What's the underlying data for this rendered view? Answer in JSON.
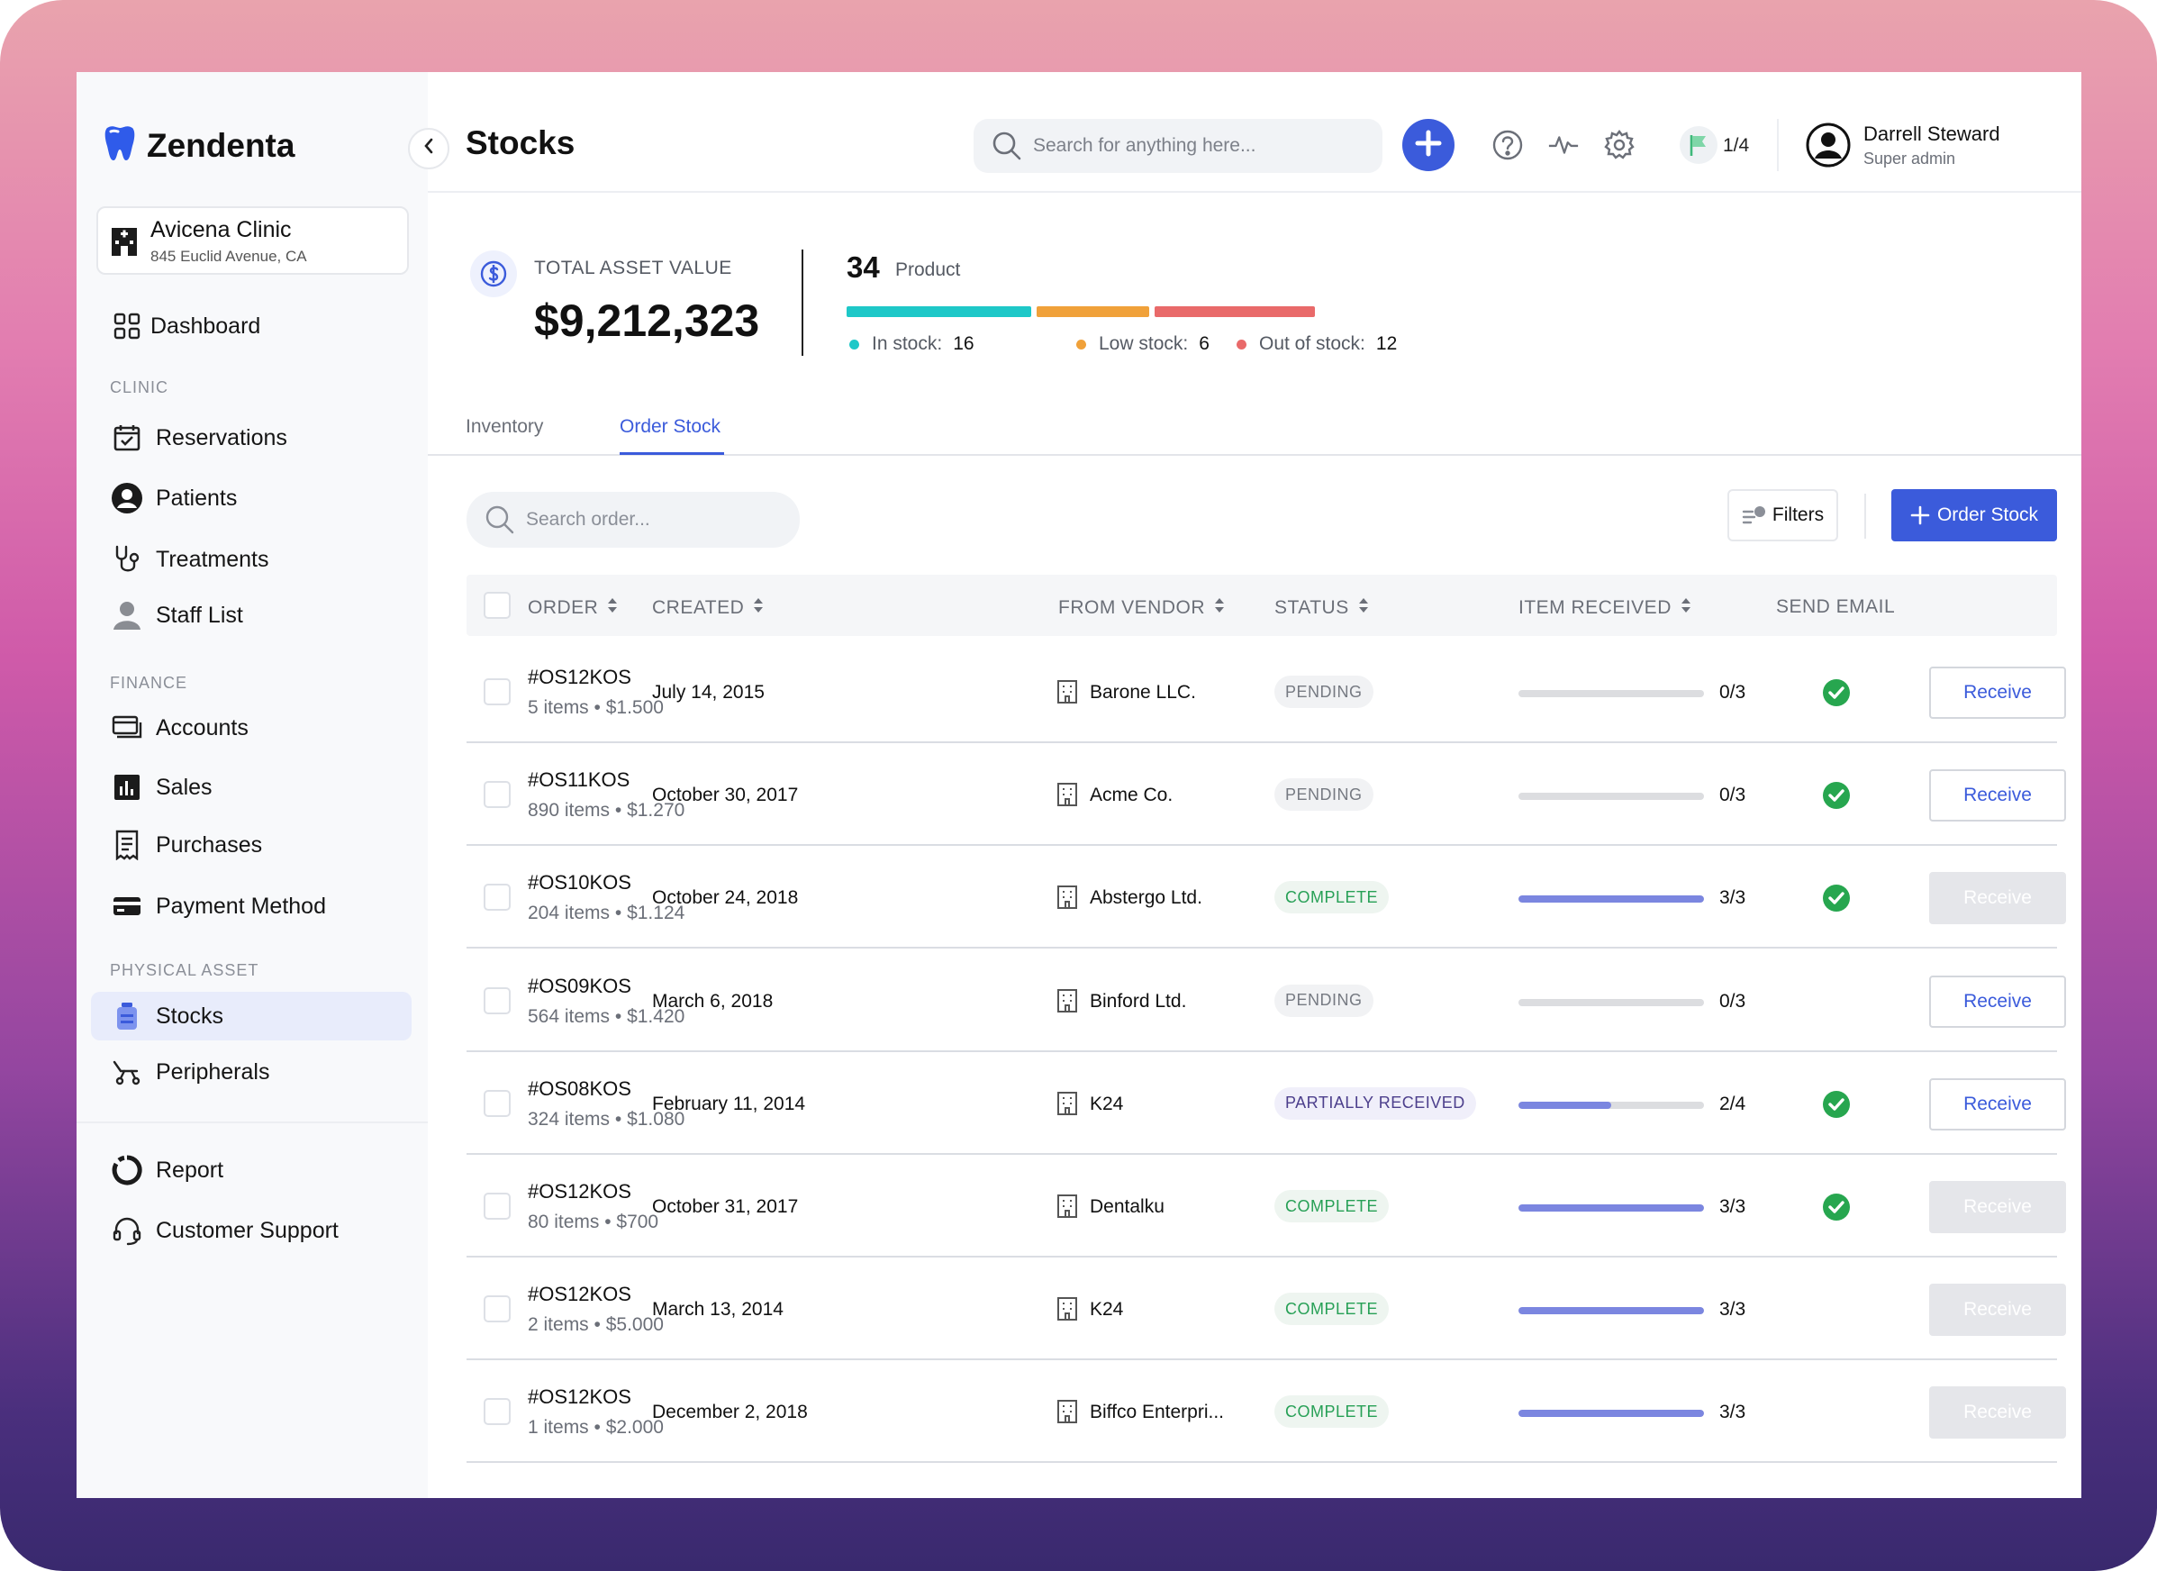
{
  "app": {
    "logo_text": "Zendenta",
    "clinic": {
      "name": "Avicena Clinic",
      "address": "845 Euclid Avenue, CA"
    }
  },
  "sidebar": {
    "dashboard": "Dashboard",
    "sections": {
      "clinic": "CLINIC",
      "finance": "FINANCE",
      "physical_asset": "PHYSICAL ASSET"
    },
    "clinic_items": [
      "Reservations",
      "Patients",
      "Treatments",
      "Staff List"
    ],
    "finance_items": [
      "Accounts",
      "Sales",
      "Purchases",
      "Payment Method"
    ],
    "asset_items": [
      "Stocks",
      "Peripherals"
    ],
    "bottom_items": [
      "Report",
      "Customer Support"
    ],
    "active_item": "Stocks"
  },
  "header": {
    "title": "Stocks",
    "search_placeholder": "Search for anything here...",
    "flag_count": "1/4",
    "user": {
      "name": "Darrell Steward",
      "role": "Super admin"
    }
  },
  "summary": {
    "asset_label": "TOTAL ASSET VALUE",
    "asset_value": "$9,212,323",
    "product_count": "34",
    "product_label": "Product",
    "in_stock_label": "In stock:",
    "in_stock": "16",
    "low_stock_label": "Low stock:",
    "low_stock": "6",
    "out_stock_label": "Out of stock:",
    "out_stock": "12",
    "colors": {
      "in_stock": "#1ec8c8",
      "low_stock": "#f0a13a",
      "out_stock": "#e96a6a"
    }
  },
  "tabs": [
    "Inventory",
    "Order Stock"
  ],
  "active_tab": "Order Stock",
  "toolbar": {
    "search_placeholder": "Search order...",
    "filters_label": "Filters",
    "order_stock_label": "Order Stock"
  },
  "table": {
    "columns": [
      "ORDER",
      "CREATED",
      "FROM VENDOR",
      "STATUS",
      "ITEM RECEIVED",
      "SEND EMAIL"
    ],
    "receive_label": "Receive",
    "rows": [
      {
        "order": "#OS12KOS",
        "meta": "5 items • $1.500",
        "created": "July 14, 2015",
        "vendor": "Barone LLC.",
        "status": "PENDING",
        "status_kind": "pending",
        "received": "0/3",
        "progress": 0,
        "email_sent": true,
        "receive_enabled": true
      },
      {
        "order": "#OS11KOS",
        "meta": "890 items • $1.270",
        "created": "October 30, 2017",
        "vendor": "Acme Co.",
        "status": "PENDING",
        "status_kind": "pending",
        "received": "0/3",
        "progress": 0,
        "email_sent": true,
        "receive_enabled": true
      },
      {
        "order": "#OS10KOS",
        "meta": "204 items • $1.124",
        "created": "October 24, 2018",
        "vendor": "Abstergo Ltd.",
        "status": "COMPLETE",
        "status_kind": "complete",
        "received": "3/3",
        "progress": 1,
        "email_sent": true,
        "receive_enabled": false
      },
      {
        "order": "#OS09KOS",
        "meta": "564 items • $1.420",
        "created": "March 6, 2018",
        "vendor": "Binford Ltd.",
        "status": "PENDING",
        "status_kind": "pending",
        "received": "0/3",
        "progress": 0,
        "email_sent": false,
        "receive_enabled": true
      },
      {
        "order": "#OS08KOS",
        "meta": "324 items • $1.080",
        "created": "February 11, 2014",
        "vendor": "K24",
        "status": "PARTIALLY RECEIVED",
        "status_kind": "partial",
        "received": "2/4",
        "progress": 0.5,
        "email_sent": true,
        "receive_enabled": true
      },
      {
        "order": "#OS12KOS",
        "meta": "80 items • $700",
        "created": "October 31, 2017",
        "vendor": "Dentalku",
        "status": "COMPLETE",
        "status_kind": "complete",
        "received": "3/3",
        "progress": 1,
        "email_sent": true,
        "receive_enabled": false
      },
      {
        "order": "#OS12KOS",
        "meta": "2 items • $5.000",
        "created": "March 13, 2014",
        "vendor": "K24",
        "status": "COMPLETE",
        "status_kind": "complete",
        "received": "3/3",
        "progress": 1,
        "email_sent": false,
        "receive_enabled": false
      },
      {
        "order": "#OS12KOS",
        "meta": "1 items • $2.000",
        "created": "December 2, 2018",
        "vendor": "Biffco Enterpri...",
        "status": "COMPLETE",
        "status_kind": "complete",
        "received": "3/3",
        "progress": 1,
        "email_sent": false,
        "receive_enabled": false
      }
    ]
  }
}
